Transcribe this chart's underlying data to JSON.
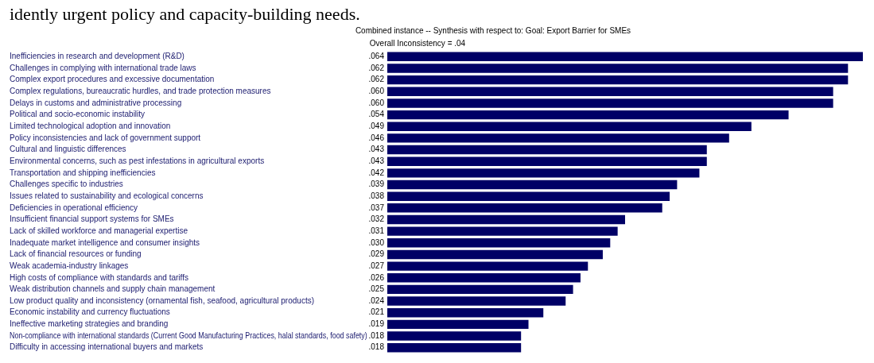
{
  "chart_data": {
    "type": "bar",
    "orientation": "horizontal",
    "title": "Combined instance -- Synthesis with respect to: Goal: Export Barrier for SMEs",
    "subtitle": "Overall Inconsistency = .04",
    "annotations": [
      "idently urgent policy and capacity-building needs."
    ],
    "categories": [
      "Inefficiencies in research and development (R&D)",
      "Challenges in complying with international trade laws",
      "Complex export procedures and excessive documentation",
      "Complex regulations, bureaucratic hurdles, and trade protection measures",
      "Delays in customs and administrative processing",
      "Political and socio-economic instability",
      "Limited technological adoption and innovation",
      "Policy inconsistencies and lack of government support",
      "Cultural and linguistic differences",
      "Environmental concerns, such as pest infestations in agricultural exports",
      "Transportation and shipping inefficiencies",
      "Challenges specific to industries",
      "Issues related to sustainability and ecological concerns",
      "Deficiencies in operational efficiency",
      "Insufficient financial support systems for SMEs",
      "Lack of skilled workforce and managerial expertise",
      "Inadequate market intelligence and consumer insights",
      "Lack of financial resources or funding",
      "Weak academia-industry linkages",
      "High costs of compliance with standards and tariffs",
      "Weak distribution channels and supply chain management",
      "Low product quality and inconsistency (ornamental fish, seafood, agricultural products)",
      "Economic instability and currency fluctuations",
      "Ineffective marketing strategies and branding",
      "Non-compliance with international standards (Current Good Manufacturing Practices, halal standards, food safety)",
      "Difficulty in accessing international buyers and markets"
    ],
    "values": [
      0.064,
      0.062,
      0.062,
      0.06,
      0.06,
      0.054,
      0.049,
      0.046,
      0.043,
      0.043,
      0.042,
      0.039,
      0.038,
      0.037,
      0.032,
      0.031,
      0.03,
      0.029,
      0.027,
      0.026,
      0.025,
      0.024,
      0.021,
      0.019,
      0.018,
      0.018
    ],
    "value_labels": [
      ".064",
      ".062",
      ".062",
      ".060",
      ".060",
      ".054",
      ".049",
      ".046",
      ".043",
      ".043",
      ".042",
      ".039",
      ".038",
      ".037",
      ".032",
      ".031",
      ".030",
      ".029",
      ".027",
      ".026",
      ".025",
      ".024",
      ".021",
      ".019",
      ".018",
      ".018"
    ],
    "color": "#000066",
    "xlim": [
      0,
      0.064
    ],
    "legend": false
  }
}
